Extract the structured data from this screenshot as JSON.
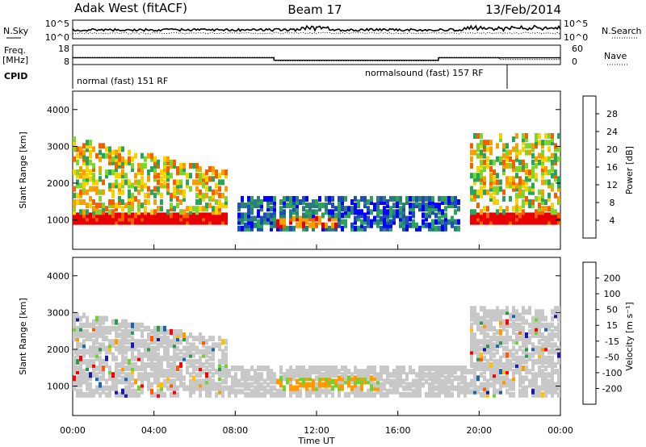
{
  "header": {
    "title_left": "Adak West (fitACF)",
    "title_center": "Beam 17",
    "title_right": "13/Feb/2014"
  },
  "labels": {
    "nsky": "N.Sky",
    "nsearch": "N.Search",
    "freq_line1": "Freq.",
    "freq_line2": "[MHz]",
    "nave": "Nave",
    "cpid": "CPID",
    "x_axis": "Time UT",
    "y_axis": "Slant Range [km]",
    "power_cbar": "Power [dB]",
    "velocity_cbar": "Velocity [m s⁻¹]"
  },
  "colors": {
    "power": [
      "#0000ff",
      "#1e4eb4",
      "#2a7d7d",
      "#2ba35a",
      "#7fd52b",
      "#f5d200",
      "#f5a000",
      "#f36000",
      "#e80000"
    ],
    "velocity": [
      "#ff0000",
      "#ff5a00",
      "#ff9a00",
      "#ffc000",
      "#c8c8c8",
      "#c8c8c8",
      "#72d132",
      "#2a9a52",
      "#1a66b3",
      "#1a1aa6"
    ]
  },
  "chart_data": {
    "type": "heatmap",
    "x_range_hours": [
      0,
      24
    ],
    "x_ticks": [
      "00:00",
      "04:00",
      "08:00",
      "12:00",
      "16:00",
      "20:00",
      "00:00"
    ],
    "noise": {
      "ylabel_left": "N.Sky",
      "ylabel_right": "N.Search",
      "left_ticks": [
        "10^5",
        "10^0"
      ],
      "right_ticks": [
        "10^5",
        "10^0"
      ]
    },
    "freq_nave": {
      "freq_ticks": [
        "18",
        "8"
      ],
      "nave_ticks": [
        "60",
        "0"
      ],
      "freq_mhz": [
        [
          0,
          11.5
        ],
        [
          9.9,
          11.5
        ],
        [
          9.9,
          10.2
        ],
        [
          18.0,
          10.2
        ],
        [
          18.0,
          11.5
        ],
        [
          24,
          11.5
        ]
      ],
      "nave": [
        [
          0,
          22
        ],
        [
          9.9,
          22
        ],
        [
          9.9,
          12
        ],
        [
          18.0,
          12
        ],
        [
          18.0,
          22
        ],
        [
          21.0,
          22
        ],
        [
          21.0,
          16
        ],
        [
          24,
          16
        ]
      ]
    },
    "cpid": [
      {
        "label": "normal (fast) 151 RF",
        "start": 0,
        "end": 21.3
      },
      {
        "label": "normalsound (fast) 157 RF",
        "start": 21.3,
        "end": 24
      }
    ],
    "range_km": [
      200,
      4500
    ],
    "range_ticks": [
      1000,
      2000,
      3000,
      4000
    ],
    "power": {
      "label": "Power [dB]",
      "cbar_ticks": [
        4,
        8,
        12,
        16,
        20,
        24,
        28
      ]
    },
    "velocity": {
      "label": "Velocity [m s⁻¹]",
      "cbar_ticks": [
        "200",
        "100",
        "50",
        "15",
        "-15",
        "-50",
        "-100",
        "-200"
      ]
    }
  }
}
